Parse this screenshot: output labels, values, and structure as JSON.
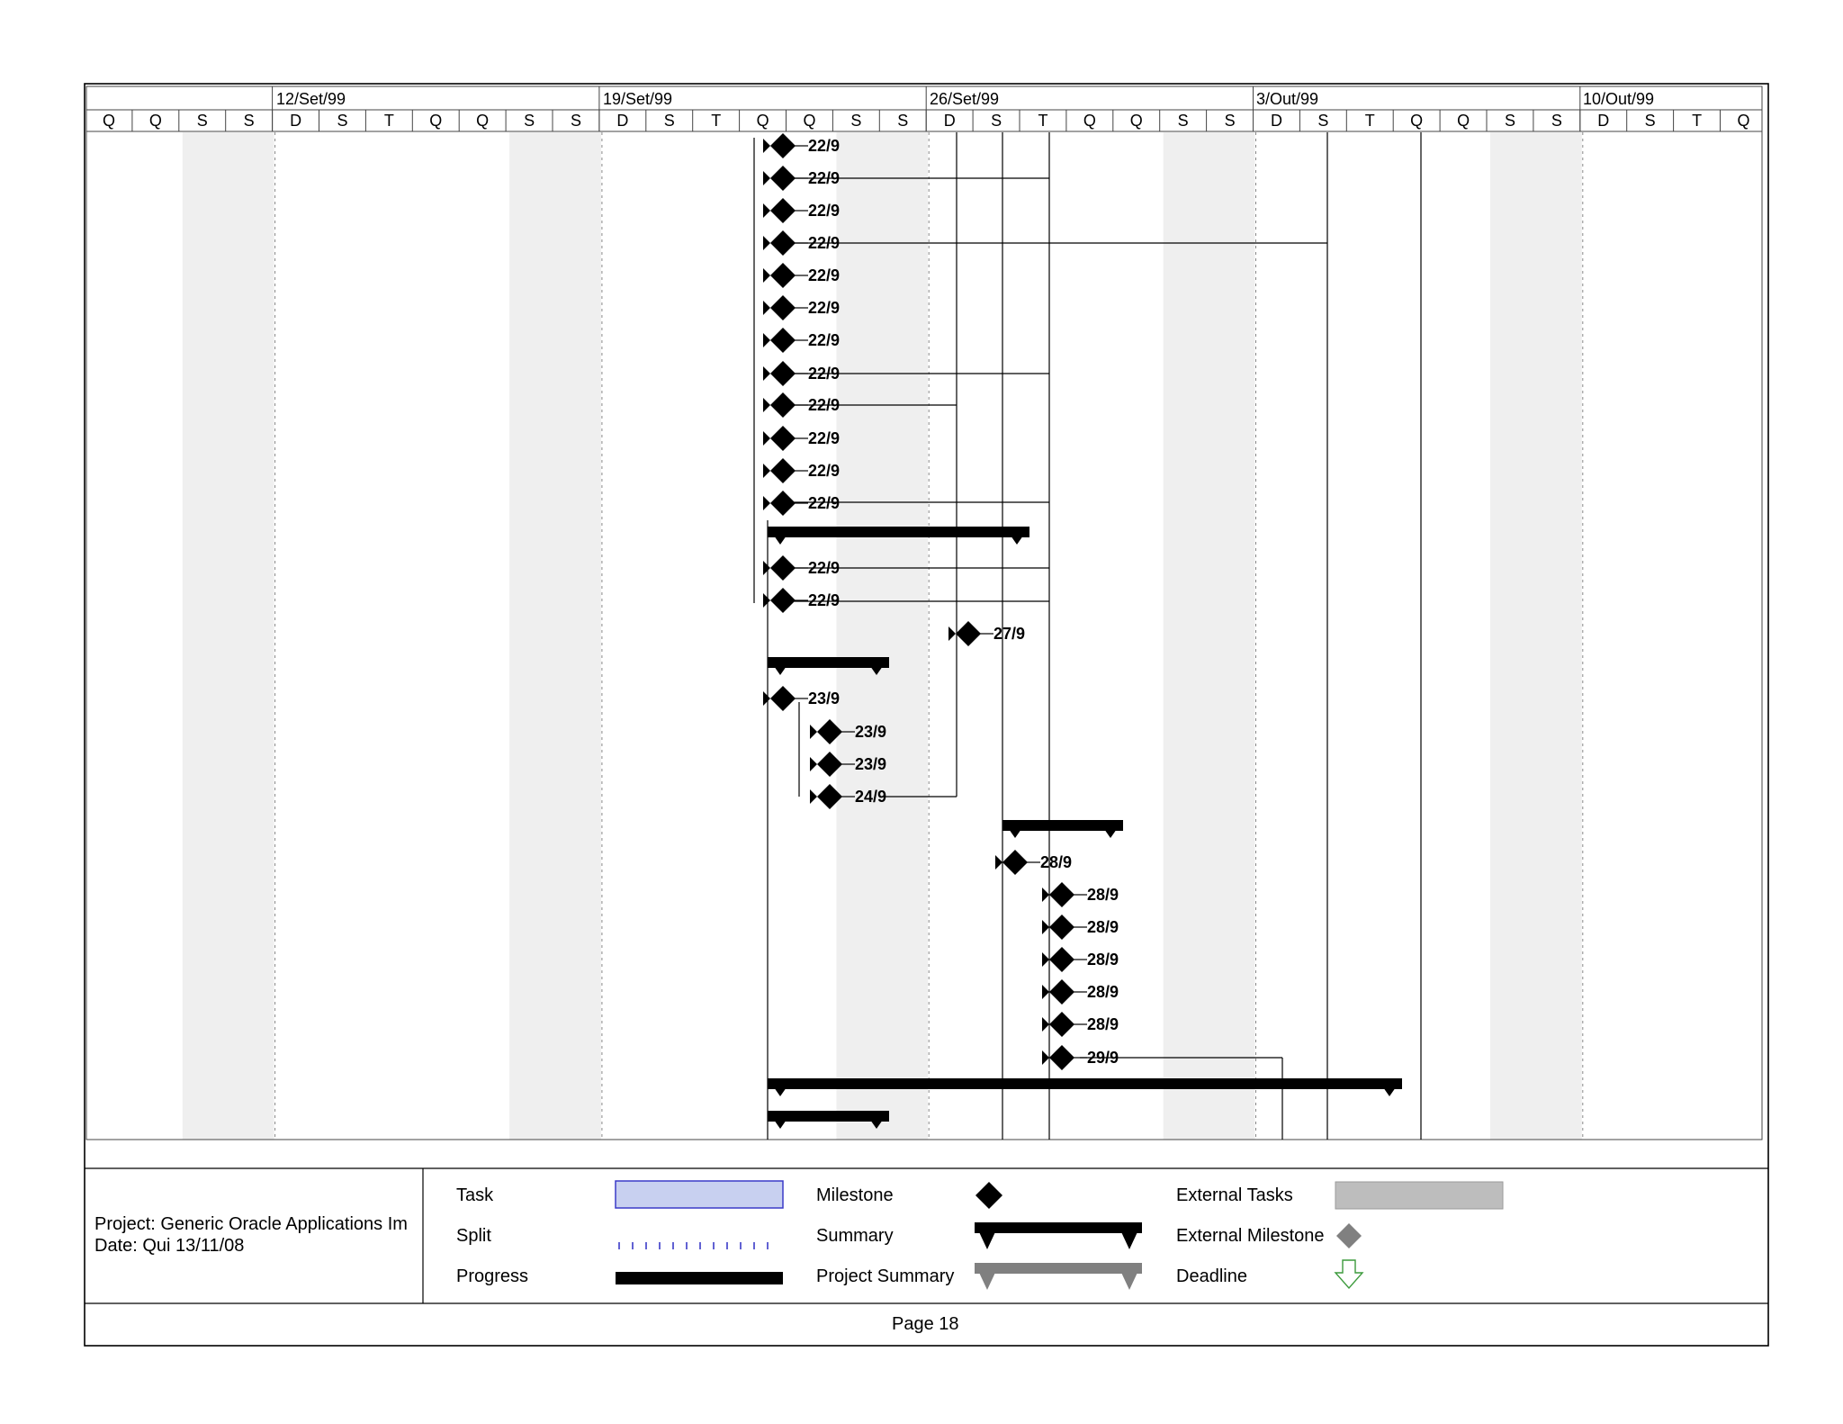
{
  "timescale": {
    "weeks": [
      "12/Set/99",
      "19/Set/99",
      "26/Set/99",
      "3/Out/99",
      "10/Out/99"
    ],
    "days": [
      "Q",
      "Q",
      "S",
      "S",
      "D",
      "S",
      "T",
      "Q",
      "Q",
      "S",
      "S",
      "D",
      "S",
      "T",
      "Q",
      "Q",
      "S",
      "S",
      "D",
      "S",
      "T",
      "Q",
      "Q",
      "S",
      "S",
      "D",
      "S",
      "T",
      "Q",
      "Q",
      "S",
      "S",
      "D",
      "S",
      "T",
      "Q"
    ]
  },
  "milestones": [
    {
      "label": "22/9"
    },
    {
      "label": "22/9"
    },
    {
      "label": "22/9"
    },
    {
      "label": "22/9"
    },
    {
      "label": "22/9"
    },
    {
      "label": "22/9"
    },
    {
      "label": "22/9"
    },
    {
      "label": "22/9"
    },
    {
      "label": "22/9"
    },
    {
      "label": "22/9"
    },
    {
      "label": "22/9"
    },
    {
      "label": "22/9"
    },
    {
      "label": "22/9"
    },
    {
      "label": "22/9"
    },
    {
      "label": "27/9"
    },
    {
      "label": "23/9"
    },
    {
      "label": "23/9"
    },
    {
      "label": "23/9"
    },
    {
      "label": "24/9"
    },
    {
      "label": "28/9"
    },
    {
      "label": "28/9"
    },
    {
      "label": "28/9"
    },
    {
      "label": "28/9"
    },
    {
      "label": "28/9"
    },
    {
      "label": "28/9"
    },
    {
      "label": "29/9"
    }
  ],
  "footer": {
    "project": "Project: Generic Oracle Applications Im",
    "date": "Date: Qui 13/11/08",
    "page": "Page 18"
  },
  "legend": {
    "task": "Task",
    "split": "Split",
    "progress": "Progress",
    "milestone": "Milestone",
    "summary": "Summary",
    "project_summary": "Project Summary",
    "external_tasks": "External Tasks",
    "external_milestone": "External Milestone",
    "deadline": "Deadline"
  },
  "colors": {
    "weekend_shade": "#efefef",
    "task_fill": "#c8d0f0",
    "task_border": "#3a3ac8",
    "external": "#bdbdbd",
    "external_milestone": "#808080",
    "project_summary": "#808080",
    "deadline": "#3c9a3c"
  }
}
